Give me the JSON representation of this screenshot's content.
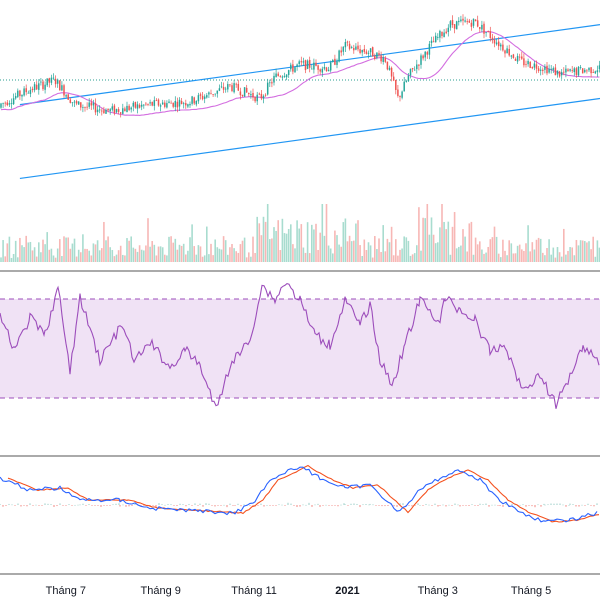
{
  "colors": {
    "up": "#26a69a",
    "down": "#ef5350",
    "volume_up": "#a8dccf",
    "volume_down": "#f7b7b5",
    "channel": "#2196f3",
    "ma": "#d36ee0",
    "rsi": "#9c4dbb",
    "rsi_band": "#f0e2f5",
    "macd": "#2962ff",
    "signal": "#f4511e",
    "hist_up": "#b7dcd7",
    "hist_down": "#f4a7a4",
    "separator": "#555555",
    "dotted_level": "#2a9d8f"
  },
  "chart_data": [
    {
      "type": "candlestick",
      "panel": "price",
      "channel_lines": [
        {
          "x": [
            "2020-06-01",
            "2021-06-15"
          ],
          "y": [
            126,
            152
          ]
        },
        {
          "x": [
            "2020-06-01",
            "2021-06-15"
          ],
          "y": [
            102,
            128
          ]
        }
      ],
      "moving_average": true,
      "horizontal_level": 134
    },
    {
      "type": "bar",
      "panel": "volume"
    },
    {
      "type": "line",
      "panel": "rsi",
      "ylim": [
        0,
        100
      ],
      "bands": [
        30,
        70
      ]
    },
    {
      "type": "line",
      "panel": "macd",
      "series_count": 2,
      "histogram": true
    }
  ],
  "xaxis": {
    "ticks": [
      {
        "label": "Tháng 7",
        "date": "2020-07-01",
        "bold": false
      },
      {
        "label": "Tháng 9",
        "date": "2020-09-01",
        "bold": false
      },
      {
        "label": "Tháng 11",
        "date": "2020-11-01",
        "bold": false
      },
      {
        "label": "2021",
        "date": "2021-01-01",
        "bold": true
      },
      {
        "label": "Tháng 3",
        "date": "2021-03-01",
        "bold": false
      },
      {
        "label": "Tháng 5",
        "date": "2021-05-01",
        "bold": false
      }
    ]
  }
}
